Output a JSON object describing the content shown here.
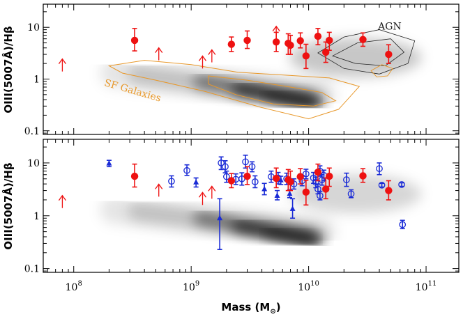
{
  "chart_data": {
    "type": "scatter",
    "xlabel": "Mass (M",
    "xlabel_sub": "⊙",
    "xlabel_close": ")",
    "xscale": "log",
    "xlim": [
      55000000.0,
      190000000000.0
    ],
    "x_tick_labels": [
      {
        "value": 100000000.0,
        "mant": "10",
        "exp": "8"
      },
      {
        "value": 1000000000.0,
        "mant": "10",
        "exp": "9"
      },
      {
        "value": 10000000000.0,
        "mant": "10",
        "exp": "10"
      },
      {
        "value": 100000000000.0,
        "mant": "10",
        "exp": "11"
      }
    ],
    "colors": {
      "red": "#ee1111",
      "blue": "#1a2bd6",
      "orange": "#e8982a",
      "contour": "#222222",
      "density": "#000000"
    },
    "panels": [
      {
        "id": "top",
        "ylabel": "OIII(5007Å)/Hβ",
        "yscale": "log",
        "ylim": [
          0.085,
          28
        ],
        "y_tick_labels": [
          {
            "value": 0.1,
            "text": "0.1"
          },
          {
            "value": 1,
            "text": "1"
          },
          {
            "value": 10,
            "text": "10"
          }
        ],
        "annotations": [
          {
            "text": "AGN",
            "x": 39000000000.0,
            "y": 9.0,
            "color": "#222222",
            "rotate": 0
          },
          {
            "text": "SF Galaxies",
            "x": 180000000.0,
            "y": 0.75,
            "color": "#e8982a",
            "rotate": 16
          }
        ],
        "red_points": [
          {
            "x": 330000000.0,
            "y": 5.6,
            "ylo": 3.5,
            "yhi": 9.5
          },
          {
            "x": 2200000000.0,
            "y": 4.7,
            "ylo": 3.4,
            "yhi": 6.5
          },
          {
            "x": 3000000000.0,
            "y": 5.6,
            "ylo": 3.9,
            "yhi": 8.5
          },
          {
            "x": 5300000000.0,
            "y": 5.2,
            "ylo": 3.4,
            "yhi": 8.0
          },
          {
            "x": 6700000000.0,
            "y": 4.9,
            "ylo": 3.0,
            "yhi": 7.5
          },
          {
            "x": 7000000000.0,
            "y": 4.5,
            "ylo": 3.0,
            "yhi": 7.0
          },
          {
            "x": 8500000000.0,
            "y": 5.5,
            "ylo": 4.0,
            "yhi": 7.8
          },
          {
            "x": 9500000000.0,
            "y": 2.8,
            "ylo": 1.6,
            "yhi": 4.7
          },
          {
            "x": 12000000000.0,
            "y": 6.7,
            "ylo": 4.6,
            "yhi": 9.5
          },
          {
            "x": 14000000000.0,
            "y": 3.3,
            "ylo": 2.1,
            "yhi": 5.2
          },
          {
            "x": 15000000000.0,
            "y": 5.6,
            "ylo": 3.6,
            "yhi": 8.0
          },
          {
            "x": 29000000000.0,
            "y": 5.8,
            "ylo": 4.3,
            "yhi": 7.8
          },
          {
            "x": 48000000000.0,
            "y": 3.0,
            "ylo": 2.0,
            "yhi": 4.6
          }
        ],
        "lower_limit_arrows": [
          {
            "x": 80000000.0,
            "y": 1.4
          },
          {
            "x": 530000000.0,
            "y": 2.3
          },
          {
            "x": 1250000000.0,
            "y": 1.6
          },
          {
            "x": 1500000000.0,
            "y": 2.1
          },
          {
            "x": 5300000000.0,
            "y": 6.0
          }
        ]
      },
      {
        "id": "bottom",
        "ylabel": "OIII(5007Å)/Hβ",
        "yscale": "log",
        "ylim": [
          0.085,
          28
        ],
        "y_tick_labels": [
          {
            "value": 0.1,
            "text": "0.1"
          },
          {
            "value": 1,
            "text": "1"
          },
          {
            "value": 10,
            "text": "10"
          }
        ],
        "red_points": [
          {
            "x": 330000000.0,
            "y": 5.6,
            "ylo": 3.5,
            "yhi": 9.5
          },
          {
            "x": 2200000000.0,
            "y": 4.6,
            "ylo": 3.4,
            "yhi": 6.3
          },
          {
            "x": 3000000000.0,
            "y": 5.6,
            "ylo": 3.9,
            "yhi": 8.5
          },
          {
            "x": 5300000000.0,
            "y": 5.1,
            "ylo": 3.4,
            "yhi": 8.0
          },
          {
            "x": 6700000000.0,
            "y": 4.8,
            "ylo": 3.0,
            "yhi": 7.5
          },
          {
            "x": 7000000000.0,
            "y": 4.4,
            "ylo": 3.0,
            "yhi": 7.0
          },
          {
            "x": 8500000000.0,
            "y": 5.5,
            "ylo": 4.0,
            "yhi": 7.8
          },
          {
            "x": 9500000000.0,
            "y": 2.8,
            "ylo": 1.6,
            "yhi": 4.7
          },
          {
            "x": 12000000000.0,
            "y": 6.7,
            "ylo": 4.6,
            "yhi": 9.5
          },
          {
            "x": 14000000000.0,
            "y": 3.2,
            "ylo": 2.1,
            "yhi": 5.2
          },
          {
            "x": 15000000000.0,
            "y": 5.6,
            "ylo": 3.6,
            "yhi": 8.0
          },
          {
            "x": 29000000000.0,
            "y": 5.7,
            "ylo": 4.3,
            "yhi": 7.8
          },
          {
            "x": 48000000000.0,
            "y": 3.0,
            "ylo": 2.0,
            "yhi": 4.6
          }
        ],
        "lower_limit_arrows": [
          {
            "x": 80000000.0,
            "y": 1.4
          },
          {
            "x": 530000000.0,
            "y": 2.3
          },
          {
            "x": 1250000000.0,
            "y": 1.6
          },
          {
            "x": 1500000000.0,
            "y": 2.1
          }
        ],
        "blue_open_circles": [
          {
            "x": 920000000.0,
            "y": 7.2,
            "ylo": 5.8,
            "yhi": 9.2
          },
          {
            "x": 680000000.0,
            "y": 4.5,
            "ylo": 3.5,
            "yhi": 5.7
          },
          {
            "x": 1800000000.0,
            "y": 10.0,
            "ylo": 7.5,
            "yhi": 13.0
          },
          {
            "x": 1950000000.0,
            "y": 8.5,
            "ylo": 6.5,
            "yhi": 11.0
          },
          {
            "x": 2000000000.0,
            "y": 5.5,
            "ylo": 4.3,
            "yhi": 7.0
          },
          {
            "x": 2400000000.0,
            "y": 4.9,
            "ylo": 3.9,
            "yhi": 6.2
          },
          {
            "x": 2700000000.0,
            "y": 5.0,
            "ylo": 3.8,
            "yhi": 6.5
          },
          {
            "x": 2900000000.0,
            "y": 10.5,
            "ylo": 8.0,
            "yhi": 14.0
          },
          {
            "x": 3300000000.0,
            "y": 8.5,
            "ylo": 6.8,
            "yhi": 10.5
          },
          {
            "x": 3500000000.0,
            "y": 4.4,
            "ylo": 3.4,
            "yhi": 5.7
          },
          {
            "x": 4800000000.0,
            "y": 5.5,
            "ylo": 4.3,
            "yhi": 7.0
          },
          {
            "x": 5500000000.0,
            "y": 5.2,
            "ylo": 4.0,
            "yhi": 6.6
          },
          {
            "x": 6500000000.0,
            "y": 5.0,
            "ylo": 3.9,
            "yhi": 6.4
          },
          {
            "x": 7500000000.0,
            "y": 4.0,
            "ylo": 3.2,
            "yhi": 5.0
          },
          {
            "x": 8800000000.0,
            "y": 4.6,
            "ylo": 3.7,
            "yhi": 5.8
          },
          {
            "x": 9500000000.0,
            "y": 6.2,
            "ylo": 5.0,
            "yhi": 7.6
          },
          {
            "x": 11000000000.0,
            "y": 5.2,
            "ylo": 4.1,
            "yhi": 6.6
          },
          {
            "x": 11500000000.0,
            "y": 4.3,
            "ylo": 3.4,
            "yhi": 5.4
          },
          {
            "x": 12000000000.0,
            "y": 3.2,
            "ylo": 2.6,
            "yhi": 4.0
          },
          {
            "x": 12500000000.0,
            "y": 2.4,
            "ylo": 2.0,
            "yhi": 2.9
          },
          {
            "x": 12500000000.0,
            "y": 7.0,
            "ylo": 5.6,
            "yhi": 8.8
          },
          {
            "x": 13000000000.0,
            "y": 4.8,
            "ylo": 3.8,
            "yhi": 6.0
          },
          {
            "x": 13500000000.0,
            "y": 5.8,
            "ylo": 4.6,
            "yhi": 7.3
          },
          {
            "x": 21000000000.0,
            "y": 4.8,
            "ylo": 3.6,
            "yhi": 6.4
          },
          {
            "x": 23000000000.0,
            "y": 2.6,
            "ylo": 2.2,
            "yhi": 3.1
          },
          {
            "x": 40000000000.0,
            "y": 7.8,
            "ylo": 6.0,
            "yhi": 10.0
          },
          {
            "x": 42000000000.0,
            "y": 3.8,
            "ylo": 3.5,
            "yhi": 4.1
          },
          {
            "x": 62000000000.0,
            "y": 3.9,
            "ylo": 3.6,
            "yhi": 4.2
          },
          {
            "x": 63000000000.0,
            "y": 0.68,
            "ylo": 0.57,
            "yhi": 0.82
          }
        ],
        "blue_triangles": [
          {
            "x": 200000000.0,
            "y": 9.8,
            "ylo": 8.5,
            "yhi": 11.2
          },
          {
            "x": 1100000000.0,
            "y": 4.3,
            "ylo": 3.5,
            "yhi": 5.2
          },
          {
            "x": 1750000000.0,
            "y": 0.9,
            "ylo": 0.23,
            "yhi": 2.1
          },
          {
            "x": 4200000000.0,
            "y": 3.2,
            "ylo": 2.5,
            "yhi": 4.1
          },
          {
            "x": 5400000000.0,
            "y": 2.4,
            "ylo": 2.0,
            "yhi": 3.0
          },
          {
            "x": 5800000000.0,
            "y": 4.7,
            "ylo": 3.9,
            "yhi": 5.6
          },
          {
            "x": 6900000000.0,
            "y": 2.6,
            "ylo": 2.2,
            "yhi": 3.1
          },
          {
            "x": 7300000000.0,
            "y": 1.35,
            "ylo": 0.9,
            "yhi": 2.1
          }
        ]
      }
    ]
  }
}
